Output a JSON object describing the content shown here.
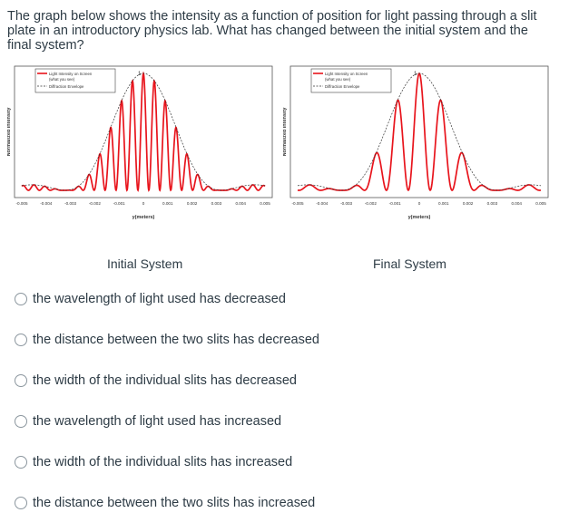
{
  "question": {
    "text": "The graph below shows the intensity as a function of position for light passing through a slit plate in an introductory physics lab.  What has changed between the initial system and the final system?"
  },
  "figures": {
    "left_caption": "Initial System",
    "right_caption": "Final System"
  },
  "colors": {
    "pattern": "#e8141c",
    "envelope": "#333333",
    "text": "#2d3b45"
  },
  "chart_data": [
    {
      "type": "line",
      "title": "",
      "xlabel": "y(meters)",
      "ylabel": "Normalized Intensity",
      "xlim": [
        -0.005,
        0.005
      ],
      "ylim": [
        0,
        1
      ],
      "x_ticks": [
        "-0.005",
        "-0.004",
        "-0.003",
        "-0.002",
        "-0.001",
        "0",
        "0.001",
        "0.002",
        "0.003",
        "0.004",
        "0.005"
      ],
      "peak_label": "1",
      "legend": [
        "Light Intensity on Screen (what you see)",
        "Diffraction Envelope"
      ],
      "legend_position": "top-left",
      "grid": false,
      "series": [
        {
          "name": "Light Intensity on Screen (what you see)",
          "fringe_spacing": 0.00045,
          "envelope_first_zero": 0.0032
        },
        {
          "name": "Diffraction Envelope",
          "envelope_first_zero": 0.0032
        }
      ]
    },
    {
      "type": "line",
      "title": "",
      "xlabel": "y(meters)",
      "ylabel": "Normalized Intensity",
      "xlim": [
        -0.005,
        0.005
      ],
      "ylim": [
        0,
        1
      ],
      "x_ticks": [
        "-0.005",
        "-0.004",
        "-0.003",
        "-0.002",
        "-0.001",
        "0",
        "0.001",
        "0.002",
        "0.003",
        "0.004",
        "0.005"
      ],
      "peak_label": "1",
      "legend": [
        "Light Intensity on Screen (what you see)",
        "Diffraction Envelope"
      ],
      "legend_position": "top-left",
      "grid": false,
      "series": [
        {
          "name": "Light Intensity on Screen (what you see)",
          "fringe_spacing": 0.0009,
          "envelope_first_zero": 0.0032
        },
        {
          "name": "Diffraction Envelope",
          "envelope_first_zero": 0.0032
        }
      ]
    }
  ],
  "options": [
    {
      "label": "the wavelength of light used has decreased"
    },
    {
      "label": "the distance between the two slits has decreased"
    },
    {
      "label": "the width of the individual slits has decreased"
    },
    {
      "label": "the wavelength of light used has increased"
    },
    {
      "label": "the width of the individual slits has increased"
    },
    {
      "label": "the distance between the two slits has increased"
    }
  ]
}
